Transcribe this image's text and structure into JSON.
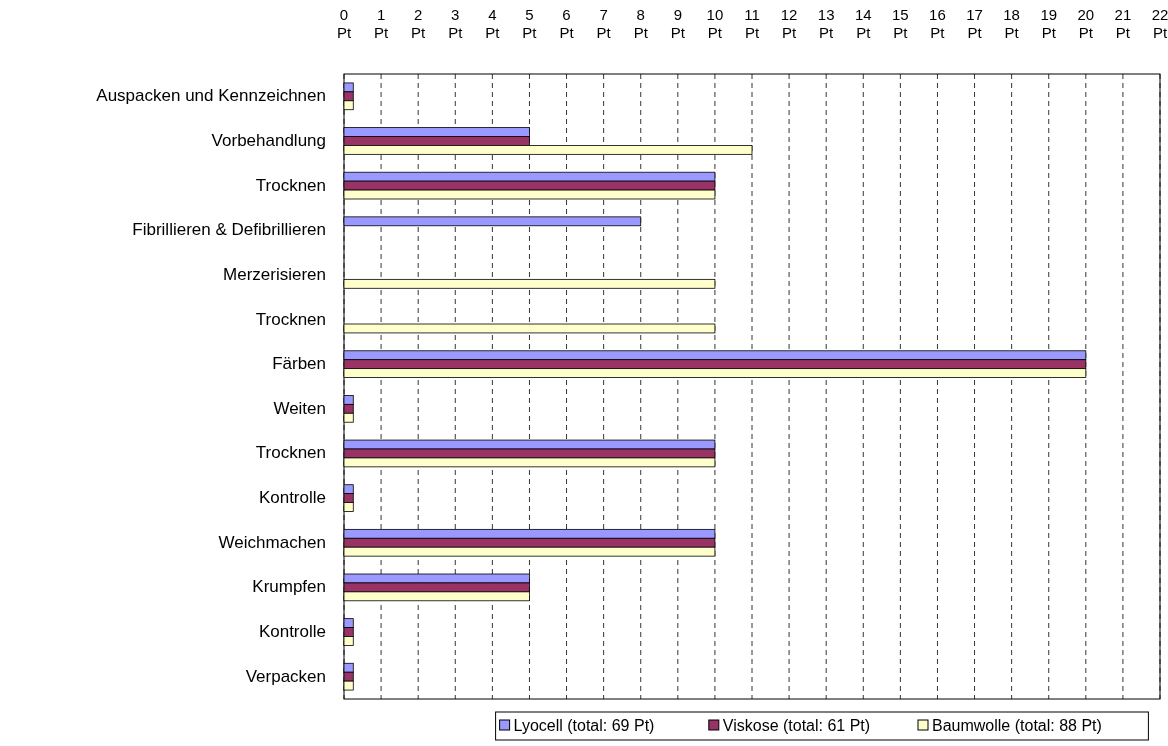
{
  "chart_data": {
    "type": "bar",
    "orientation": "horizontal",
    "categories": [
      "Auspacken und Kennzeichnen",
      "Vorbehandlung",
      "Trocknen",
      "Fibrillieren & Defibrillieren",
      "Merzerisieren",
      "Trocknen",
      "Färben",
      "Weiten",
      "Trocknen",
      "Kontrolle",
      "Weichmachen",
      "Krumpfen",
      "Kontrolle",
      "Verpacken"
    ],
    "series": [
      {
        "name": "Lyocell (total: 69 Pt)",
        "color": "#9999ff",
        "values": [
          0.25,
          5,
          10,
          8,
          null,
          null,
          20,
          0.25,
          10,
          0.25,
          10,
          5,
          0.25,
          0.25
        ]
      },
      {
        "name": "Viskose (total: 61 Pt)",
        "color": "#993366",
        "values": [
          0.25,
          5,
          10,
          null,
          null,
          null,
          20,
          0.25,
          10,
          0.25,
          10,
          5,
          0.25,
          0.25
        ]
      },
      {
        "name": "Baumwolle (total: 88 Pt)",
        "color": "#ffffcc",
        "values": [
          0.25,
          11,
          10,
          null,
          10,
          10,
          20,
          0.25,
          10,
          0.25,
          10,
          5,
          0.25,
          0.25
        ]
      }
    ],
    "xlim": [
      0,
      22
    ],
    "xticks": [
      {
        "value": 0,
        "label": "0 Pt"
      },
      {
        "value": 1,
        "label": "1 Pt"
      },
      {
        "value": 2,
        "label": "2 Pt"
      },
      {
        "value": 3,
        "label": "3 Pt"
      },
      {
        "value": 4,
        "label": "4 Pt"
      },
      {
        "value": 5,
        "label": "5 Pt"
      },
      {
        "value": 6,
        "label": "6 Pt"
      },
      {
        "value": 7,
        "label": "7 Pt"
      },
      {
        "value": 8,
        "label": "8 Pt"
      },
      {
        "value": 9,
        "label": "9 Pt"
      },
      {
        "value": 10,
        "label": "10 Pt"
      },
      {
        "value": 11,
        "label": "11 Pt"
      },
      {
        "value": 12,
        "label": "12 Pt"
      },
      {
        "value": 13,
        "label": "13 Pt"
      },
      {
        "value": 14,
        "label": "14 Pt"
      },
      {
        "value": 15,
        "label": "15 Pt"
      },
      {
        "value": 16,
        "label": "16 Pt"
      },
      {
        "value": 17,
        "label": "17 Pt"
      },
      {
        "value": 18,
        "label": "18 Pt"
      },
      {
        "value": 19,
        "label": "19 Pt"
      },
      {
        "value": 20,
        "label": "20 Pt"
      },
      {
        "value": 21,
        "label": "21 Pt"
      },
      {
        "value": 22,
        "label": "22 Pt"
      }
    ],
    "grid": "x",
    "line_style": "dashed",
    "legend": "bottom"
  }
}
